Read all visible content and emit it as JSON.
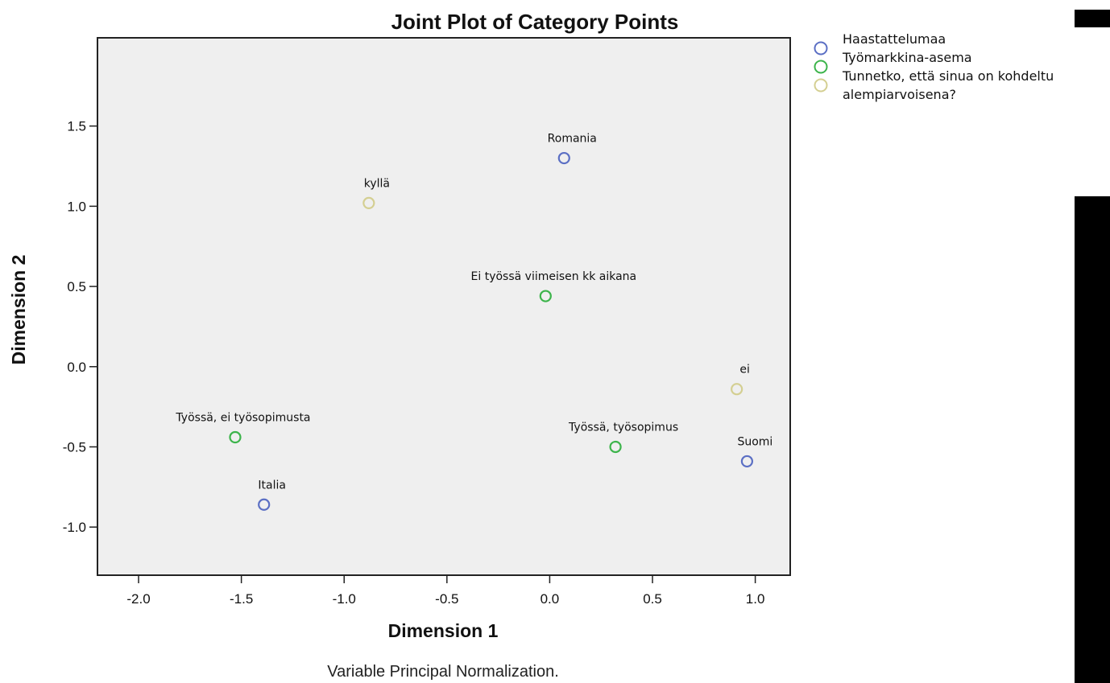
{
  "chart_data": {
    "type": "scatter",
    "title": "Joint Plot of Category Points",
    "xlabel": "Dimension 1",
    "ylabel": "Dimension 2",
    "footnote": "Variable Principal Normalization.",
    "xlim": [
      -2.2,
      1.17
    ],
    "ylim": [
      -1.3,
      2.05
    ],
    "x_ticks": [
      -2.0,
      -1.5,
      -1.0,
      -0.5,
      0.0,
      0.5,
      1.0
    ],
    "x_tick_labels": [
      "-2.0",
      "-1.5",
      "-1.0",
      "-0.5",
      "0.0",
      "0.5",
      "1.0"
    ],
    "y_ticks": [
      1.5,
      1.0,
      0.5,
      0.0,
      -0.5,
      -1.0
    ],
    "y_tick_labels": [
      "1.5",
      "1.0",
      "0.5",
      "0.0",
      "-0.5",
      "-1.0"
    ],
    "grid": false,
    "legend_position": "right-outside",
    "series": [
      {
        "name": "Haastattelumaa",
        "color": "#5b6fc4",
        "points": [
          {
            "label": "Romania",
            "x": 0.07,
            "y": 1.3
          },
          {
            "label": "Italia",
            "x": -1.39,
            "y": -0.86
          },
          {
            "label": "Suomi",
            "x": 0.96,
            "y": -0.59
          }
        ]
      },
      {
        "name": "Työmarkkina-asema",
        "color": "#3cb44b",
        "points": [
          {
            "label": "Ei työssä viimeisen kk aikana",
            "x": -0.02,
            "y": 0.44
          },
          {
            "label": "Työssä, ei työsopimusta",
            "x": -1.53,
            "y": -0.44
          },
          {
            "label": "Työssä, työsopimus",
            "x": 0.32,
            "y": -0.5
          }
        ]
      },
      {
        "name": "Tunnetko, että sinua on kohdeltu alempiarvoisena?",
        "legend_lines": [
          "Tunnetko, että sinua on kohdeltu",
          "alempiarvoisena?"
        ],
        "color": "#d4cf92",
        "points": [
          {
            "label": "kyllä",
            "x": -0.88,
            "y": 1.02
          },
          {
            "label": "ei",
            "x": 0.91,
            "y": -0.14
          }
        ]
      }
    ]
  }
}
